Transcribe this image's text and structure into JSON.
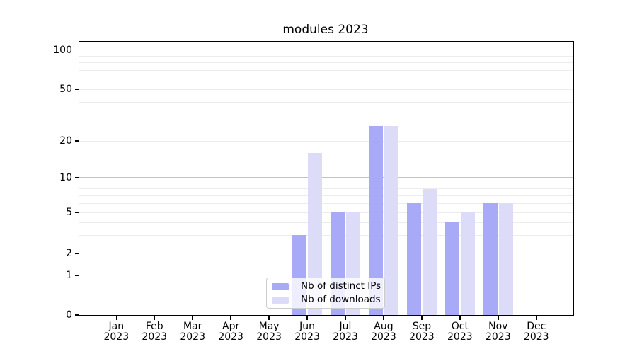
{
  "chart_data": {
    "type": "bar",
    "title": "modules 2023",
    "categories": [
      {
        "month": "Jan",
        "year": "2023"
      },
      {
        "month": "Feb",
        "year": "2023"
      },
      {
        "month": "Mar",
        "year": "2023"
      },
      {
        "month": "Apr",
        "year": "2023"
      },
      {
        "month": "May",
        "year": "2023"
      },
      {
        "month": "Jun",
        "year": "2023"
      },
      {
        "month": "Jul",
        "year": "2023"
      },
      {
        "month": "Aug",
        "year": "2023"
      },
      {
        "month": "Sep",
        "year": "2023"
      },
      {
        "month": "Oct",
        "year": "2023"
      },
      {
        "month": "Nov",
        "year": "2023"
      },
      {
        "month": "Dec",
        "year": "2023"
      }
    ],
    "series": [
      {
        "name": "Nb of distinct IPs",
        "color": "#a9aaf7",
        "values": [
          0,
          0,
          0,
          0,
          0,
          3,
          5,
          26,
          6,
          4,
          6,
          0
        ]
      },
      {
        "name": "Nb of downloads",
        "color": "#dcdcf9",
        "values": [
          0,
          0,
          0,
          0,
          0,
          16,
          5,
          26,
          8,
          5,
          6,
          0
        ]
      }
    ],
    "y_axis": {
      "scale": "log-like with zero baseline",
      "ticks": [
        {
          "value": 0,
          "frac": 1.0
        },
        {
          "value": 1,
          "frac": 0.8549
        },
        {
          "value": 2,
          "frac": 0.7746
        },
        {
          "value": 5,
          "frac": 0.6244
        },
        {
          "value": 10,
          "frac": 0.4966
        },
        {
          "value": 20,
          "frac": 0.3627
        },
        {
          "value": 50,
          "frac": 0.1746
        },
        {
          "value": 100,
          "frac": 0.0303
        }
      ],
      "minor_gridlines": [
        2,
        3,
        4,
        5,
        6,
        7,
        8,
        9,
        20,
        30,
        40,
        50,
        60,
        70,
        80,
        90
      ],
      "major_gridlines": [
        1,
        10,
        100
      ]
    },
    "legend": {
      "position": "lower center",
      "entries": [
        "Nb of distinct IPs",
        "Nb of downloads"
      ]
    },
    "grid": true,
    "colors": {
      "grid_minor": "#ececec",
      "grid_major": "#c3c3c3",
      "spine": "#000000",
      "background": "#ffffff"
    }
  }
}
